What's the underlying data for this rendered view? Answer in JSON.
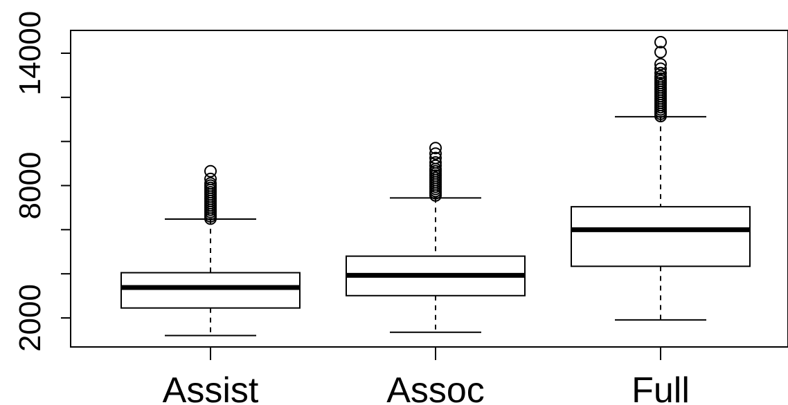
{
  "chart_data": {
    "type": "boxplot",
    "categories": [
      "Assist",
      "Assoc",
      "Full"
    ],
    "y_ticks": [
      2000,
      8000,
      14000
    ],
    "y_ticks_unlabeled": [
      4000,
      6000,
      10000,
      12000
    ],
    "ylim": [
      1150,
      15500
    ],
    "grid": false,
    "boxes": [
      {
        "name": "Assist",
        "whisker_low": 1200,
        "q1": 2450,
        "median": 3380,
        "q3": 4050,
        "whisker_high": 6480,
        "outliers": [
          6500,
          6600,
          6700,
          6800,
          6900,
          7000,
          7100,
          7200,
          7300,
          7400,
          7500,
          7600,
          7700,
          7800,
          7900,
          8000,
          8100,
          8300,
          8650
        ]
      },
      {
        "name": "Assoc",
        "whisker_low": 1350,
        "q1": 3010,
        "median": 3930,
        "q3": 4800,
        "whisker_high": 7440,
        "outliers": [
          7550,
          7650,
          7750,
          7850,
          7950,
          8050,
          8150,
          8250,
          8350,
          8450,
          8550,
          8650,
          8750,
          8900,
          9050,
          9250,
          9450,
          9700
        ]
      },
      {
        "name": "Full",
        "whisker_low": 1910,
        "q1": 4340,
        "median": 6000,
        "q3": 7040,
        "whisker_high": 11120,
        "outliers": [
          11150,
          11250,
          11350,
          11450,
          11550,
          11650,
          11750,
          11850,
          11950,
          12050,
          12150,
          12250,
          12350,
          12450,
          12550,
          12650,
          12750,
          12850,
          12950,
          13100,
          13300,
          13500,
          14050,
          14500
        ]
      }
    ]
  }
}
